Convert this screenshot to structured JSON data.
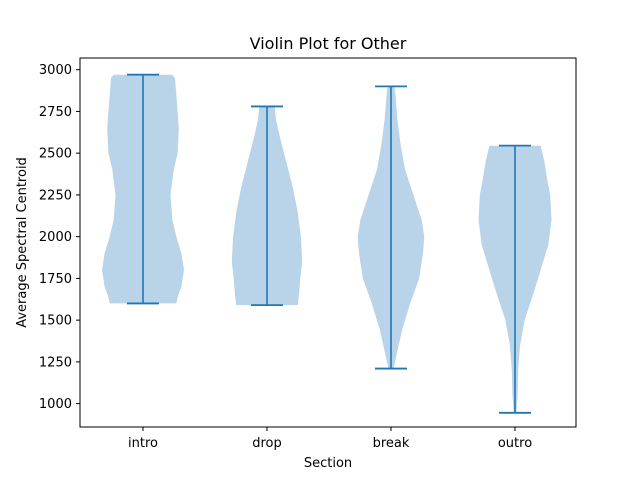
{
  "chart_data": {
    "type": "violin",
    "title": "Violin Plot for Other",
    "xlabel": "Section",
    "ylabel": "Average Spectral Centroid",
    "categories": [
      "intro",
      "drop",
      "break",
      "outro"
    ],
    "ylim": [
      860,
      3070
    ],
    "yticks": [
      1000,
      1250,
      1500,
      1750,
      2000,
      2250,
      2500,
      2750,
      3000
    ],
    "ytick_labels": [
      "1000",
      "1250",
      "1500",
      "1750",
      "2000",
      "2250",
      "2500",
      "2750",
      "3000"
    ],
    "grid": false,
    "colors": {
      "body": "#b9d4e8",
      "line": "#1f77b4"
    },
    "violins": [
      {
        "name": "intro",
        "min": 1600,
        "max": 2970,
        "profile": [
          [
            1600,
            0.52
          ],
          [
            1650,
            0.55
          ],
          [
            1700,
            0.6
          ],
          [
            1800,
            0.64
          ],
          [
            1900,
            0.6
          ],
          [
            2000,
            0.52
          ],
          [
            2100,
            0.46
          ],
          [
            2250,
            0.43
          ],
          [
            2400,
            0.48
          ],
          [
            2500,
            0.54
          ],
          [
            2650,
            0.56
          ],
          [
            2750,
            0.54
          ],
          [
            2850,
            0.52
          ],
          [
            2950,
            0.5
          ],
          [
            2970,
            0.46
          ]
        ]
      },
      {
        "name": "drop",
        "min": 1590,
        "max": 2780,
        "profile": [
          [
            1590,
            0.48
          ],
          [
            1650,
            0.5
          ],
          [
            1750,
            0.52
          ],
          [
            1850,
            0.55
          ],
          [
            2000,
            0.53
          ],
          [
            2150,
            0.48
          ],
          [
            2300,
            0.4
          ],
          [
            2450,
            0.3
          ],
          [
            2600,
            0.2
          ],
          [
            2700,
            0.14
          ],
          [
            2780,
            0.12
          ]
        ]
      },
      {
        "name": "break",
        "min": 1210,
        "max": 2900,
        "profile": [
          [
            1210,
            0.04
          ],
          [
            1300,
            0.09
          ],
          [
            1450,
            0.18
          ],
          [
            1600,
            0.3
          ],
          [
            1750,
            0.44
          ],
          [
            1900,
            0.5
          ],
          [
            2000,
            0.52
          ],
          [
            2100,
            0.48
          ],
          [
            2250,
            0.35
          ],
          [
            2400,
            0.22
          ],
          [
            2550,
            0.15
          ],
          [
            2700,
            0.1
          ],
          [
            2850,
            0.07
          ],
          [
            2900,
            0.05
          ]
        ]
      },
      {
        "name": "outro",
        "min": 945,
        "max": 2545,
        "profile": [
          [
            945,
            0.02
          ],
          [
            1050,
            0.04
          ],
          [
            1200,
            0.05
          ],
          [
            1350,
            0.08
          ],
          [
            1500,
            0.15
          ],
          [
            1650,
            0.28
          ],
          [
            1800,
            0.4
          ],
          [
            1950,
            0.52
          ],
          [
            2100,
            0.57
          ],
          [
            2250,
            0.55
          ],
          [
            2350,
            0.5
          ],
          [
            2450,
            0.46
          ],
          [
            2545,
            0.4
          ]
        ]
      }
    ]
  }
}
